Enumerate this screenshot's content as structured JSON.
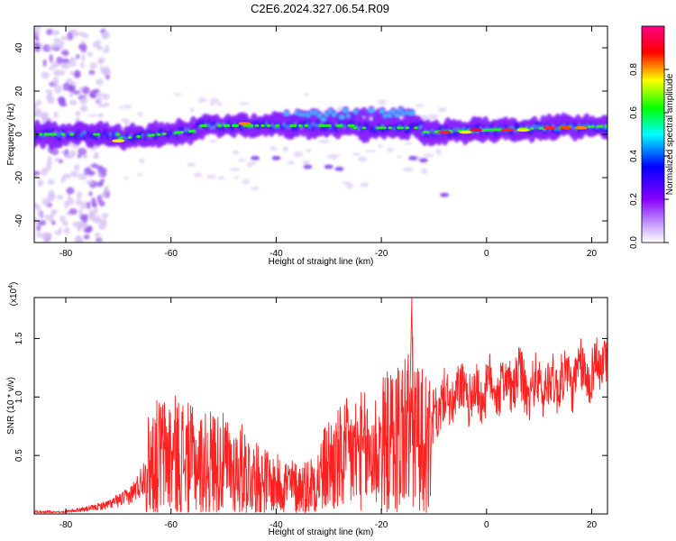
{
  "title": "C2E6.2024.327.06.54.R09",
  "spectrogram": {
    "xlabel": "Height of straight line (km)",
    "ylabel": "Frequency (Hz)",
    "xlim": [
      -86,
      23
    ],
    "ylim": [
      -50,
      50
    ],
    "xticks": [
      -80,
      -60,
      -40,
      -20,
      0,
      20
    ],
    "yticks": [
      -40,
      -20,
      0,
      20,
      40
    ],
    "colorbar": {
      "label": "Normalized spectral amplitude",
      "range": [
        0.0,
        1.0
      ],
      "ticks": [
        "0.0",
        "0.2",
        "0.4",
        "0.6",
        "0.8"
      ],
      "colors": [
        "#ffffff",
        "#8800ff",
        "#0000ff",
        "#00ffff",
        "#00ff00",
        "#ffff00",
        "#ff0000",
        "#ff0088"
      ]
    }
  },
  "chart_data": {
    "type": "line",
    "xlabel": "Height of straight line (km)",
    "ylabel": "SNR (10 * v/v)",
    "multiplier": "(x10",
    "multiplier_exp": "4",
    "xlim": [
      -86,
      23
    ],
    "ylim": [
      0,
      1.85
    ],
    "xticks": [
      -80,
      -60,
      -40,
      -20,
      0,
      20
    ],
    "yticks": [
      0.5,
      1.0,
      1.5
    ],
    "series": [
      {
        "color": "#ff2020",
        "x": [
          -86,
          -80,
          -75,
          -72,
          -68,
          -66,
          -64,
          -62,
          -60,
          -58,
          -56,
          -54,
          -52,
          -50,
          -48,
          -46,
          -44,
          -42,
          -40,
          -38,
          -36,
          -34,
          -32,
          -30,
          -28,
          -26,
          -24,
          -22,
          -20,
          -18,
          -16,
          -14,
          -12,
          -10.5,
          -10,
          -8,
          -6,
          -4,
          -2,
          0,
          2,
          4,
          6,
          8,
          10,
          12,
          14,
          16,
          18,
          20,
          22,
          23
        ],
        "y": [
          0.0,
          0.02,
          0.05,
          0.08,
          0.15,
          0.25,
          0.45,
          0.5,
          0.5,
          0.5,
          0.45,
          0.42,
          0.45,
          0.42,
          0.38,
          0.38,
          0.3,
          0.28,
          0.25,
          0.25,
          0.22,
          0.24,
          0.3,
          0.42,
          0.45,
          0.5,
          0.52,
          0.5,
          0.58,
          0.62,
          0.7,
          0.75,
          0.6,
          0.55,
          0.9,
          0.95,
          1.0,
          1.05,
          1.0,
          1.08,
          1.1,
          1.1,
          1.15,
          1.05,
          1.1,
          1.1,
          1.15,
          1.15,
          1.2,
          1.2,
          1.3,
          1.38
        ]
      }
    ]
  }
}
